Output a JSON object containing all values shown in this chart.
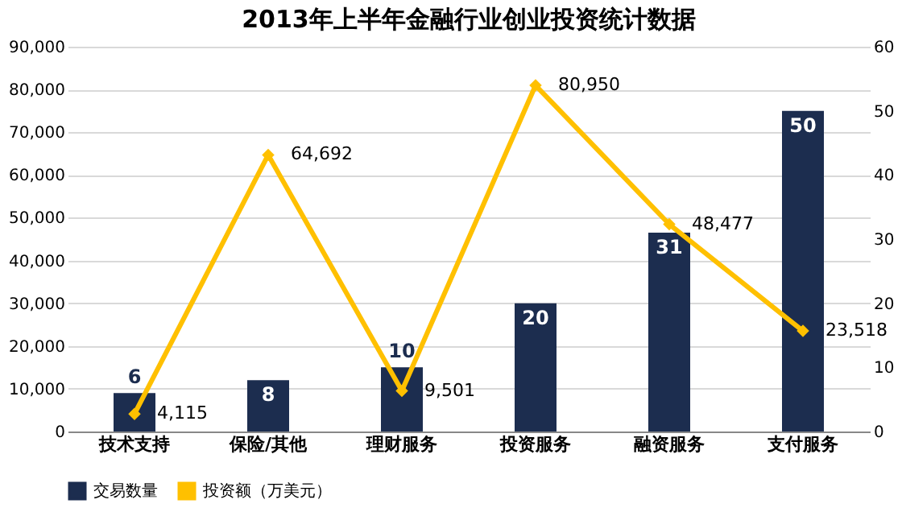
{
  "chart_data": {
    "type": "bar",
    "title": "2013年上半年金融行业创业投资统计数据",
    "categories": [
      "技术支持",
      "保险/其他",
      "理财服务",
      "投资服务",
      "融资服务",
      "支付服务"
    ],
    "series": [
      {
        "name": "交易数量",
        "axis": "y2",
        "color": "#1c2d4f",
        "values": [
          6,
          8,
          10,
          20,
          31,
          50
        ]
      },
      {
        "name": "投资额（万美元）",
        "type": "line",
        "color": "#ffc000",
        "values": [
          4115,
          64692,
          9501,
          80950,
          48477,
          23518
        ],
        "value_labels": [
          "4,115",
          "64,692",
          "9,501",
          "80,950",
          "48,477",
          "23,518"
        ]
      }
    ],
    "ylim": [
      0,
      90000
    ],
    "yticks": [
      0,
      {
        "value": 10000,
        "label": "10,000"
      },
      {
        "value": 20000,
        "label": "20,000"
      },
      {
        "value": 30000,
        "label": "30,000"
      },
      {
        "value": 40000,
        "label": "40,000"
      },
      {
        "value": 50000,
        "label": "50,000"
      },
      {
        "value": 60000,
        "label": "60,000"
      },
      {
        "value": 70000,
        "label": "70,000"
      },
      {
        "value": 80000,
        "label": "80,000"
      },
      {
        "value": 90000,
        "label": "90,000"
      }
    ],
    "y2lim": [
      0,
      60
    ],
    "y2ticks": [
      0,
      10,
      20,
      30,
      40,
      50,
      60
    ],
    "data_labels": true,
    "grid": "y",
    "legend": "bottom",
    "marker": "diamond"
  }
}
